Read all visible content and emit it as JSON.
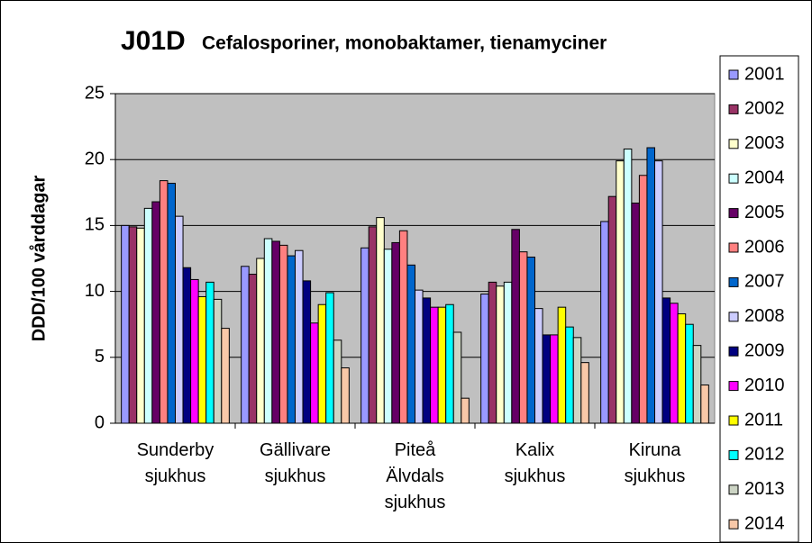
{
  "chart_data": {
    "type": "bar",
    "title": "J01D",
    "subtitle": "Cefalosporiner, monobaktamer, tienamyciner",
    "y_label": "DDD/100 vårddagar",
    "categories": [
      "Sunderby\nsjukhus",
      "Gällivare\nsjukhus",
      "Piteå\nÄlvdals\nsjukhus",
      "Kalix\nsjukhus",
      "Kiruna\nsjukhus"
    ],
    "ylim": [
      0,
      25
    ],
    "yticks": [
      0,
      5,
      10,
      15,
      20,
      25
    ],
    "grid": true,
    "legend": "right",
    "series": [
      {
        "name": "2001",
        "color": "#9999FF",
        "values": [
          15.0,
          11.9,
          13.3,
          9.8,
          15.3
        ]
      },
      {
        "name": "2002",
        "color": "#993366",
        "values": [
          14.9,
          11.3,
          14.9,
          10.7,
          17.2
        ]
      },
      {
        "name": "2003",
        "color": "#FFFFCC",
        "values": [
          14.8,
          12.5,
          15.6,
          10.4,
          19.9
        ]
      },
      {
        "name": "2004",
        "color": "#CCFFFF",
        "values": [
          16.3,
          14.0,
          13.2,
          10.7,
          20.8
        ]
      },
      {
        "name": "2005",
        "color": "#660066",
        "values": [
          16.8,
          13.8,
          13.7,
          14.7,
          16.7
        ]
      },
      {
        "name": "2006",
        "color": "#FF8080",
        "values": [
          18.4,
          13.5,
          14.6,
          13.0,
          18.8
        ]
      },
      {
        "name": "2007",
        "color": "#0066CC",
        "values": [
          18.2,
          12.7,
          12.0,
          12.6,
          20.9
        ]
      },
      {
        "name": "2008",
        "color": "#CCCCFF",
        "values": [
          15.7,
          13.1,
          10.1,
          8.7,
          19.9
        ]
      },
      {
        "name": "2009",
        "color": "#000080",
        "values": [
          11.8,
          10.8,
          9.5,
          6.7,
          9.5
        ]
      },
      {
        "name": "2010",
        "color": "#FF00FF",
        "values": [
          10.9,
          7.6,
          8.8,
          6.7,
          9.1
        ]
      },
      {
        "name": "2011",
        "color": "#FFFF00",
        "values": [
          9.6,
          9.0,
          8.8,
          8.8,
          8.3
        ]
      },
      {
        "name": "2012",
        "color": "#00FFFF",
        "values": [
          10.7,
          9.9,
          9.0,
          7.3,
          7.5
        ]
      },
      {
        "name": "2013",
        "color": "#CCD4C4",
        "values": [
          9.4,
          6.3,
          6.9,
          6.5,
          5.9
        ]
      },
      {
        "name": "2014",
        "color": "#F8C8A8",
        "values": [
          7.2,
          4.2,
          1.9,
          4.6,
          2.9
        ]
      }
    ]
  }
}
